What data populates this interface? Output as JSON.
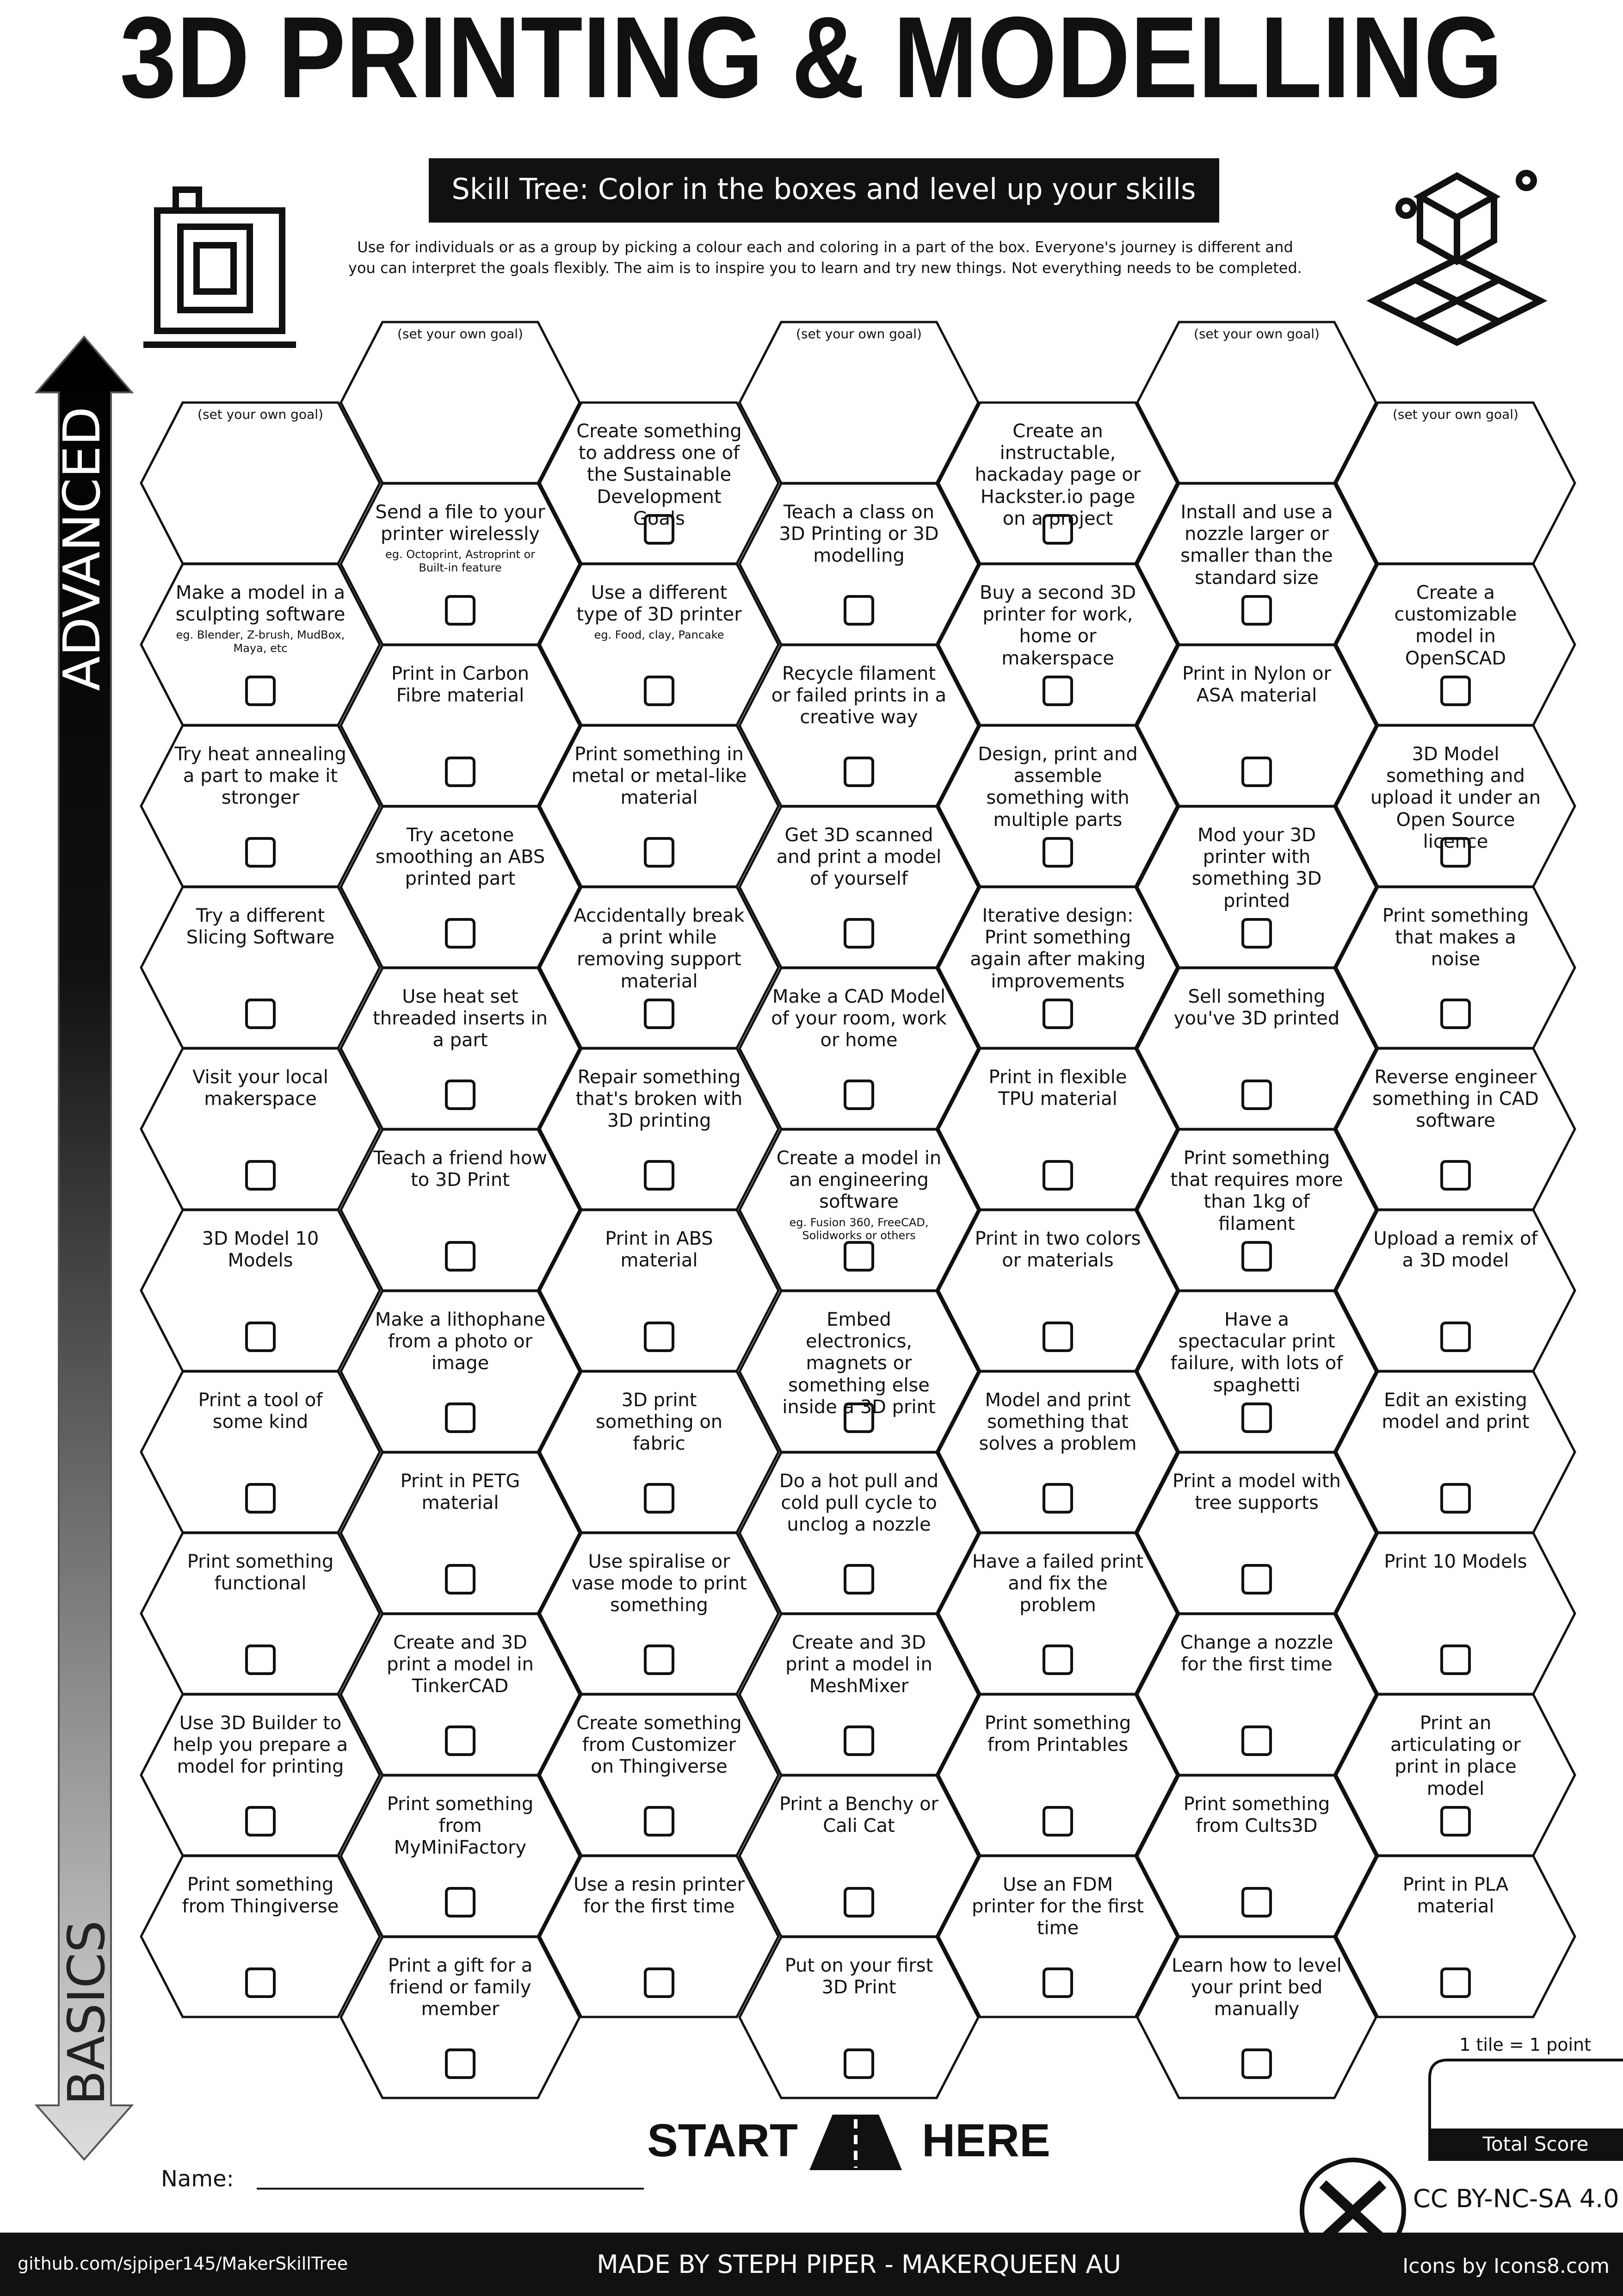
{
  "header": {
    "title": "3D PRINTING & MODELLING",
    "subtitle": "Skill Tree:  Color in the boxes and level up your skills",
    "intro": "Use for individuals or as a group by picking a colour each and coloring in a part of the box.  Everyone's journey is different and you can interpret the goals flexibly.  The aim is to inspire you to learn and try new things. Not everything needs to be completed."
  },
  "axis": {
    "top": "ADVANCED",
    "bottom": "BASICS"
  },
  "columns": [
    [
      {
        "note": "(set your own goal)"
      },
      {
        "text": "Make a model in a sculpting software",
        "sub": "eg. Blender, Z-brush, MudBox, Maya, etc"
      },
      {
        "text": "Try heat annealing a part to make it stronger"
      },
      {
        "text": "Try a different Slicing Software"
      },
      {
        "text": "Visit your local makerspace"
      },
      {
        "text": "3D Model 10 Models"
      },
      {
        "text": "Print a tool of some kind"
      },
      {
        "text": "Print something functional"
      },
      {
        "text": "Use 3D Builder to help you prepare a model for printing"
      },
      {
        "text": "Print something from Thingiverse"
      }
    ],
    [
      {
        "note": "(set your own goal)"
      },
      {
        "text": "Send a file to your printer wirelessly",
        "sub": "eg. Octoprint, Astroprint or Built-in feature"
      },
      {
        "text": "Print in Carbon Fibre material"
      },
      {
        "text": "Try acetone smoothing an ABS printed part"
      },
      {
        "text": "Use heat set threaded inserts in a part"
      },
      {
        "text": "Teach a friend how to 3D Print"
      },
      {
        "text": "Make a lithophane from a photo or image"
      },
      {
        "text": "Print in PETG material"
      },
      {
        "text": "Create and 3D print a model in TinkerCAD"
      },
      {
        "text": "Print something from MyMiniFactory"
      },
      {
        "text": "Print a gift for a friend or family member"
      }
    ],
    [
      {
        "text": "Create something to address one of the Sustainable Development Goals"
      },
      {
        "text": "Use a different type of 3D printer",
        "sub": "eg. Food, clay, Pancake"
      },
      {
        "text": "Print something in metal or metal-like material"
      },
      {
        "text": "Accidentally break a print while removing support material"
      },
      {
        "text": "Repair something that's broken with 3D printing"
      },
      {
        "text": "Print in ABS material"
      },
      {
        "text": "3D print something on fabric"
      },
      {
        "text": "Use spiralise or vase mode to print something"
      },
      {
        "text": "Create something from Customizer on Thingiverse"
      },
      {
        "text": "Use a resin printer for the first time"
      }
    ],
    [
      {
        "note": "(set your own goal)"
      },
      {
        "text": "Teach a class on 3D Printing or 3D modelling"
      },
      {
        "text": "Recycle filament or failed prints in a creative way"
      },
      {
        "text": "Get 3D scanned and print a model of yourself"
      },
      {
        "text": "Make a CAD Model of your room, work or home"
      },
      {
        "text": "Create a model in an engineering software",
        "sub": "eg. Fusion 360, FreeCAD, Solidworks or others"
      },
      {
        "text": "Embed electronics, magnets or something else inside a 3D print"
      },
      {
        "text": "Do a hot pull and cold pull cycle to unclog a nozzle"
      },
      {
        "text": "Create and 3D print a model in MeshMixer"
      },
      {
        "text": "Print a Benchy or Cali Cat"
      },
      {
        "text": "Put on your first 3D Print"
      }
    ],
    [
      {
        "text": "Create an instructable, hackaday page or Hackster.io page on a project"
      },
      {
        "text": "Buy a second 3D printer for work, home or makerspace"
      },
      {
        "text": "Design, print and assemble something with multiple parts"
      },
      {
        "text": "Iterative design: Print something again after making improvements"
      },
      {
        "text": "Print in flexible TPU material"
      },
      {
        "text": "Print in two colors or materials"
      },
      {
        "text": "Model and print something that solves a problem"
      },
      {
        "text": "Have a failed print and fix the problem"
      },
      {
        "text": "Print something from Printables"
      },
      {
        "text": "Use an FDM printer for the first time"
      }
    ],
    [
      {
        "note": "(set your own goal)"
      },
      {
        "text": "Install and use a nozzle larger or smaller than the standard size"
      },
      {
        "text": "Print in Nylon or ASA material"
      },
      {
        "text": "Mod your 3D printer with something 3D printed"
      },
      {
        "text": "Sell something you've 3D printed"
      },
      {
        "text": "Print something that requires more than 1kg of filament"
      },
      {
        "text": "Have a spectacular print failure, with lots of spaghetti"
      },
      {
        "text": "Print a model with tree supports"
      },
      {
        "text": "Change a nozzle for the first time"
      },
      {
        "text": "Print something from Cults3D"
      },
      {
        "text": "Learn how to level your print bed manually"
      }
    ],
    [
      {
        "note": "(set your own goal)"
      },
      {
        "text": "Create a customizable model in OpenSCAD"
      },
      {
        "text": "3D Model something and upload it under an Open Source licence"
      },
      {
        "text": "Print something that makes a noise"
      },
      {
        "text": "Reverse engineer something in CAD software"
      },
      {
        "text": "Upload a remix of a 3D model"
      },
      {
        "text": "Edit an existing model and print"
      },
      {
        "text": "Print 10 Models"
      },
      {
        "text": "Print an articulating or print in place model"
      },
      {
        "text": "Print in PLA material"
      }
    ]
  ],
  "start": {
    "left": "START",
    "right": "HERE"
  },
  "name_label": "Name:",
  "score": {
    "note": "1 tile = 1 point",
    "label": "Total Score"
  },
  "footer": {
    "url": "github.com/sjpiper145/MakerSkillTree",
    "credit": "MADE BY STEPH PIPER  -  MAKERQUEEN AU",
    "license": "CC BY-NC-SA 4.0",
    "icons": "Icons by Icons8.com"
  }
}
